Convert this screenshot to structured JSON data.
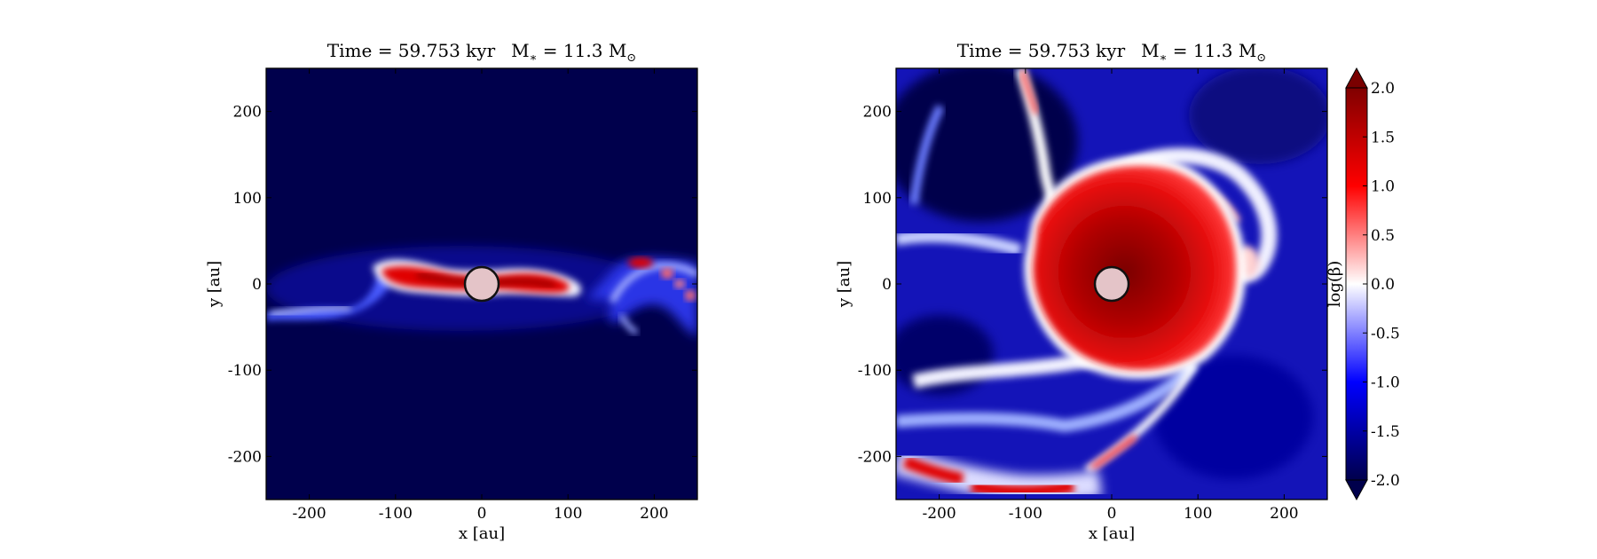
{
  "chart_data": [
    {
      "type": "heatmap",
      "panel": "left",
      "title": "Time = 59.753 kyr    M∗ = 11.3 M⊙",
      "title_parts": {
        "time": "Time = 59.753 kyr",
        "mass_lhs": "M",
        "mass_sub": "∗",
        "mass_rhs": " = 11.3 M",
        "mass_unit_sub": "⊙"
      },
      "xlabel": "x [au]",
      "ylabel": "y [au]",
      "xlim": [
        -250,
        250
      ],
      "ylim": [
        -250,
        250
      ],
      "xticks": [
        -200,
        -100,
        0,
        100,
        200
      ],
      "yticks": [
        -200,
        -100,
        0,
        100,
        200
      ],
      "xtick_labels": [
        "-200",
        "-100",
        "0",
        "100",
        "200"
      ],
      "ytick_labels": [
        "-200",
        "-100",
        "0",
        "100",
        "200"
      ],
      "field": "log(β)",
      "features": [
        {
          "kind": "sink-particle",
          "x": 0,
          "y": 0,
          "radius_au": 20
        },
        {
          "kind": "high-beta-disk",
          "orientation": "edge-on",
          "x_extent": [
            -110,
            110
          ],
          "y_extent": [
            -15,
            15
          ],
          "peak_value": 2.0
        },
        {
          "kind": "outflow-filament",
          "x_extent": [
            120,
            250
          ],
          "y_extent": [
            -60,
            35
          ]
        }
      ]
    },
    {
      "type": "heatmap",
      "panel": "right",
      "title": "Time = 59.753 kyr    M∗ = 11.3 M⊙",
      "title_parts": {
        "time": "Time = 59.753 kyr",
        "mass_lhs": "M",
        "mass_sub": "∗",
        "mass_rhs": " = 11.3 M",
        "mass_unit_sub": "⊙"
      },
      "xlabel": "x [au]",
      "ylabel": "y [au]",
      "xlim": [
        -250,
        250
      ],
      "ylim": [
        -250,
        250
      ],
      "xticks": [
        -200,
        -100,
        0,
        100,
        200
      ],
      "yticks": [
        -200,
        -100,
        0,
        100,
        200
      ],
      "xtick_labels": [
        "-200",
        "-100",
        "0",
        "100",
        "200"
      ],
      "ytick_labels": [
        "-200",
        "-100",
        "0",
        "100",
        "200"
      ],
      "field": "log(β)",
      "features": [
        {
          "kind": "sink-particle",
          "x": 0,
          "y": 0,
          "radius_au": 20
        },
        {
          "kind": "high-beta-disk",
          "orientation": "face-on",
          "x_extent": [
            -105,
            125
          ],
          "y_extent": [
            -115,
            150
          ],
          "peak_value": 2.0
        },
        {
          "kind": "spiral-arms",
          "count": 3
        }
      ]
    }
  ],
  "colorbar": {
    "label": "log(β)",
    "range": [
      -2.0,
      2.0
    ],
    "extend": "both",
    "ticks": [
      -2.0,
      -1.5,
      -1.0,
      -0.5,
      0.0,
      0.5,
      1.0,
      1.5,
      2.0
    ],
    "tick_labels": [
      "-2.0",
      "-1.5",
      "-1.0",
      "-0.5",
      "0.0",
      "0.5",
      "1.0",
      "1.5",
      "2.0"
    ],
    "colormap": "seismic",
    "colors": {
      "low": "#00004c",
      "mid_low": "#0000ff",
      "center": "#ffffff",
      "mid_high": "#ff0000",
      "high": "#800000"
    }
  }
}
